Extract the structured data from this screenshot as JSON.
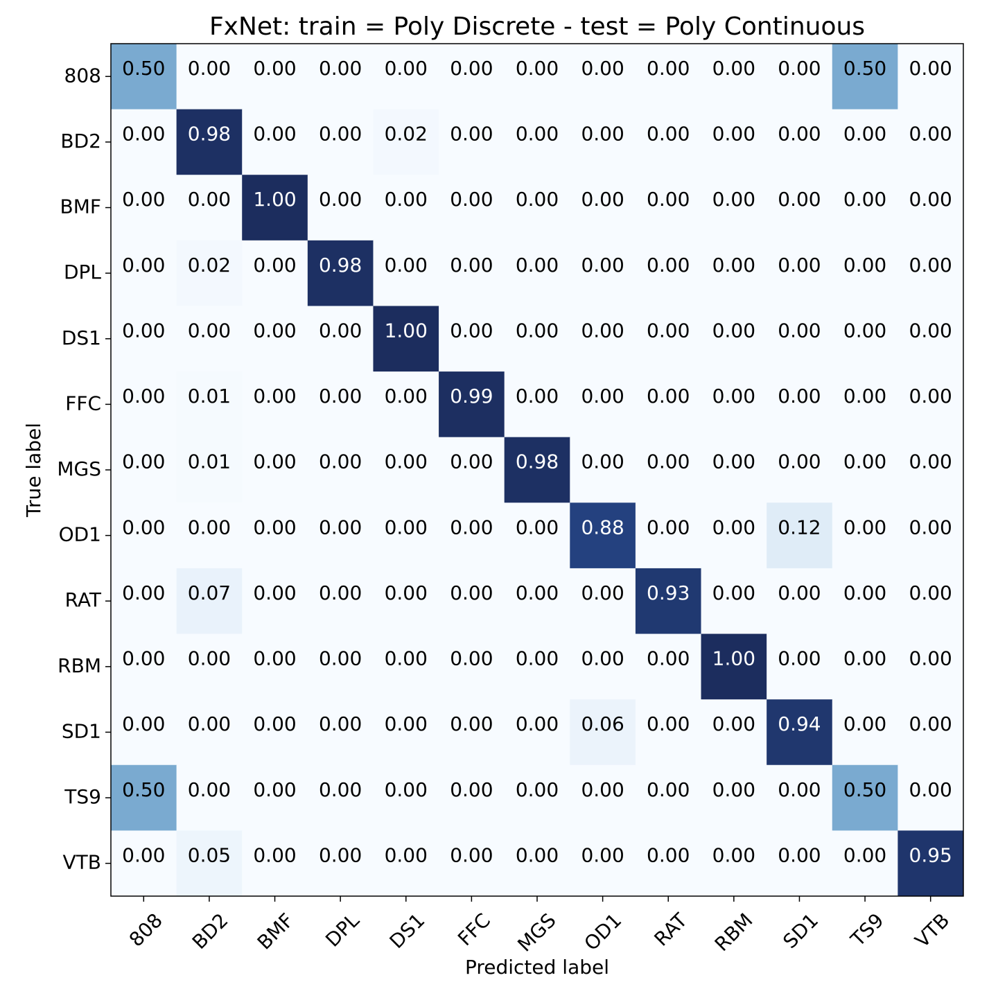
{
  "chart_data": {
    "type": "heatmap",
    "title": "FxNet: train = Poly Discrete - test = Poly Continuous",
    "xlabel": "Predicted label",
    "ylabel": "True label",
    "x_categories": [
      "808",
      "BD2",
      "BMF",
      "DPL",
      "DS1",
      "FFC",
      "MGS",
      "OD1",
      "RAT",
      "RBM",
      "SD1",
      "TS9",
      "VTB"
    ],
    "y_categories": [
      "808",
      "BD2",
      "BMF",
      "DPL",
      "DS1",
      "FFC",
      "MGS",
      "OD1",
      "RAT",
      "RBM",
      "SD1",
      "TS9",
      "VTB"
    ],
    "values": [
      [
        0.5,
        0.0,
        0.0,
        0.0,
        0.0,
        0.0,
        0.0,
        0.0,
        0.0,
        0.0,
        0.0,
        0.5,
        0.0
      ],
      [
        0.0,
        0.98,
        0.0,
        0.0,
        0.02,
        0.0,
        0.0,
        0.0,
        0.0,
        0.0,
        0.0,
        0.0,
        0.0
      ],
      [
        0.0,
        0.0,
        1.0,
        0.0,
        0.0,
        0.0,
        0.0,
        0.0,
        0.0,
        0.0,
        0.0,
        0.0,
        0.0
      ],
      [
        0.0,
        0.02,
        0.0,
        0.98,
        0.0,
        0.0,
        0.0,
        0.0,
        0.0,
        0.0,
        0.0,
        0.0,
        0.0
      ],
      [
        0.0,
        0.0,
        0.0,
        0.0,
        1.0,
        0.0,
        0.0,
        0.0,
        0.0,
        0.0,
        0.0,
        0.0,
        0.0
      ],
      [
        0.0,
        0.01,
        0.0,
        0.0,
        0.0,
        0.99,
        0.0,
        0.0,
        0.0,
        0.0,
        0.0,
        0.0,
        0.0
      ],
      [
        0.0,
        0.01,
        0.0,
        0.0,
        0.0,
        0.0,
        0.98,
        0.0,
        0.0,
        0.0,
        0.0,
        0.0,
        0.0
      ],
      [
        0.0,
        0.0,
        0.0,
        0.0,
        0.0,
        0.0,
        0.0,
        0.88,
        0.0,
        0.0,
        0.12,
        0.0,
        0.0
      ],
      [
        0.0,
        0.07,
        0.0,
        0.0,
        0.0,
        0.0,
        0.0,
        0.0,
        0.93,
        0.0,
        0.0,
        0.0,
        0.0
      ],
      [
        0.0,
        0.0,
        0.0,
        0.0,
        0.0,
        0.0,
        0.0,
        0.0,
        0.0,
        1.0,
        0.0,
        0.0,
        0.0
      ],
      [
        0.0,
        0.0,
        0.0,
        0.0,
        0.0,
        0.0,
        0.0,
        0.06,
        0.0,
        0.0,
        0.94,
        0.0,
        0.0
      ],
      [
        0.5,
        0.0,
        0.0,
        0.0,
        0.0,
        0.0,
        0.0,
        0.0,
        0.0,
        0.0,
        0.0,
        0.5,
        0.0
      ],
      [
        0.0,
        0.05,
        0.0,
        0.0,
        0.0,
        0.0,
        0.0,
        0.0,
        0.0,
        0.0,
        0.0,
        0.0,
        0.95
      ]
    ],
    "value_format": "0.00",
    "colormap": "Blues",
    "colormap_min_color": "#f7fbff",
    "colormap_max_color": "#1c2d5e",
    "text_color_dark": "#000000",
    "text_color_light": "#ffffff",
    "vmin": 0,
    "vmax": 1,
    "grid": false,
    "legend": "none"
  }
}
